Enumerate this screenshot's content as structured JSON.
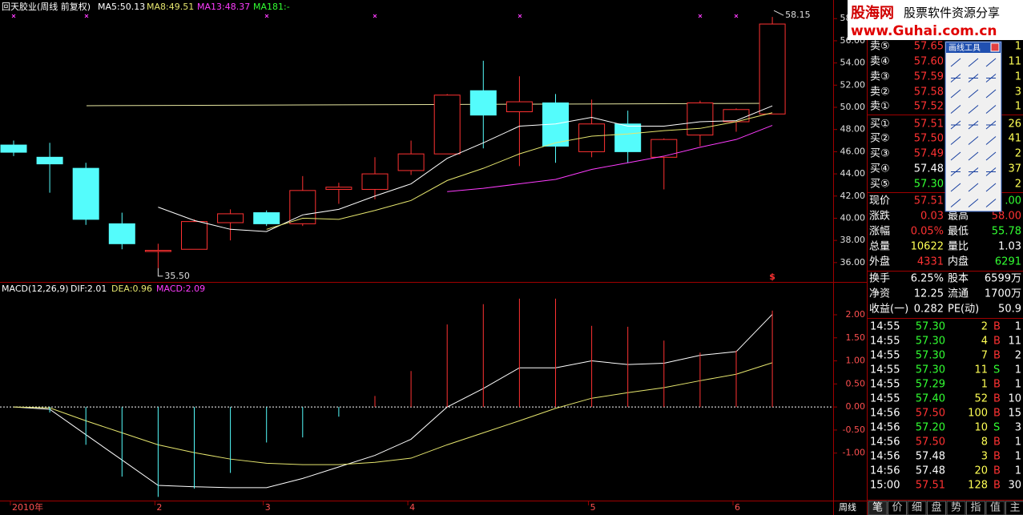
{
  "chart_data": [
    {
      "type": "candlestick",
      "title": "回天胶业(周线 前复权)",
      "open": [
        46.6,
        45.5,
        44.5,
        39.5,
        37.0,
        37.2,
        39.6,
        40.5,
        39.5,
        42.6,
        42.6,
        44.3,
        45.8,
        51.5,
        49.6,
        50.4,
        46.0,
        48.5,
        45.5,
        47.5,
        48.7,
        49.4
      ],
      "high": [
        47.0,
        46.8,
        45.0,
        40.5,
        37.7,
        39.9,
        40.8,
        40.7,
        43.8,
        43.2,
        45.5,
        47.0,
        51.2,
        54.2,
        52.8,
        51.2,
        50.7,
        49.7,
        47.2,
        50.6,
        49.9,
        58.15
      ],
      "low": [
        45.6,
        42.3,
        39.4,
        37.2,
        35.5,
        37.2,
        38.0,
        39.3,
        39.3,
        41.3,
        41.7,
        43.9,
        45.8,
        46.3,
        44.7,
        45.0,
        45.5,
        45.0,
        42.6,
        46.5,
        47.8,
        49.4
      ],
      "close": [
        45.95,
        44.9,
        39.9,
        37.7,
        37.1,
        39.7,
        40.4,
        39.5,
        42.5,
        42.8,
        44.0,
        45.8,
        51.1,
        49.3,
        50.5,
        46.5,
        48.5,
        46.0,
        47.1,
        50.4,
        49.8,
        57.51
      ],
      "up_color": "#ff3232",
      "down_color": "#54fcfc",
      "series": [
        {
          "name": "MA5:50.13",
          "color": "#ffffff",
          "values": [
            null,
            null,
            null,
            null,
            41.0,
            39.8,
            39.0,
            38.8,
            40.3,
            40.8,
            42.0,
            43.1,
            45.4,
            46.8,
            48.3,
            48.5,
            49.1,
            48.3,
            48.3,
            48.7,
            48.8,
            50.13
          ]
        },
        {
          "name": "MA8:49.51",
          "color": "#e6e66e",
          "values": [
            null,
            null,
            null,
            null,
            null,
            null,
            null,
            39.0,
            40.0,
            39.9,
            40.7,
            41.6,
            43.4,
            44.5,
            45.8,
            46.8,
            47.4,
            47.6,
            47.9,
            48.1,
            48.7,
            49.51
          ]
        },
        {
          "name": "MA13:48.37",
          "color": "#ff3cff",
          "values": [
            null,
            null,
            null,
            null,
            null,
            null,
            null,
            null,
            null,
            null,
            null,
            null,
            42.4,
            42.7,
            43.1,
            43.5,
            44.4,
            45.0,
            45.6,
            46.4,
            47.1,
            48.37
          ]
        },
        {
          "name": "MA181:-",
          "color": "#32ff32",
          "values": [
            null,
            null,
            null,
            null,
            null,
            null,
            null,
            null,
            null,
            null,
            null,
            null,
            null,
            null,
            null,
            null,
            null,
            null,
            null,
            null,
            null,
            null
          ]
        }
      ],
      "ylim": [
        34.4,
        59.1
      ],
      "yticks": [
        {
          "value": 36,
          "label": "36.00"
        },
        {
          "value": 38,
          "label": "38.00"
        },
        {
          "value": 40,
          "label": "40.00"
        },
        {
          "value": 42,
          "label": "42.00"
        },
        {
          "value": 44,
          "label": "44.00"
        },
        {
          "value": 46,
          "label": "46.00"
        },
        {
          "value": 48,
          "label": "48.00"
        },
        {
          "value": 50,
          "label": "50.00"
        },
        {
          "value": 52,
          "label": "52.00"
        },
        {
          "value": 54,
          "label": "54.00"
        },
        {
          "value": 56,
          "label": "56.00"
        },
        {
          "value": 58,
          "label": "58.00"
        }
      ],
      "annotations": [
        {
          "text": "58.15"
        },
        {
          "text": "35.50"
        },
        {
          "text": "$"
        }
      ]
    },
    {
      "type": "macd",
      "title": "MACD(12,26,9)",
      "categories": [
        "2010年",
        null,
        null,
        null,
        "2",
        null,
        null,
        "3",
        null,
        null,
        null,
        "4",
        null,
        null,
        null,
        null,
        "5",
        null,
        null,
        null,
        "6",
        null
      ],
      "up_color": "#ff3232",
      "down_color": "#54fcfc",
      "series": [
        {
          "name": "DIF:2.01",
          "color": "#ffffff",
          "values": [
            0,
            -0.05,
            -0.6,
            -1.15,
            -1.7,
            -1.73,
            -1.75,
            -1.75,
            -1.55,
            -1.3,
            -1.05,
            -0.7,
            0.0,
            0.4,
            0.85,
            0.85,
            1.0,
            0.92,
            0.95,
            1.12,
            1.2,
            2.01
          ]
        },
        {
          "name": "DEA:0.96",
          "color": "#e6e66e",
          "values": [
            0,
            -0.02,
            -0.3,
            -0.56,
            -0.82,
            -0.99,
            -1.13,
            -1.22,
            -1.25,
            -1.25,
            -1.2,
            -1.11,
            -0.82,
            -0.56,
            -0.3,
            -0.03,
            0.19,
            0.31,
            0.42,
            0.57,
            0.71,
            0.96
          ]
        },
        {
          "name": "MACD:2.09",
          "color": "#ff3cff",
          "type": "bar",
          "values": [
            0,
            -0.12,
            -0.82,
            -1.51,
            -1.95,
            -1.77,
            -1.43,
            -0.77,
            -0.66,
            -0.21,
            0.24,
            0.78,
            1.79,
            2.23,
            2.35,
            2.35,
            1.76,
            1.74,
            1.44,
            1.18,
            1.22,
            2.09
          ]
        }
      ],
      "ylim": [
        -2.03,
        2.66
      ],
      "yticks": [
        {
          "value": -1,
          "label": "-1.00"
        },
        {
          "value": -0.5,
          "label": "-0.50"
        },
        {
          "value": 0,
          "label": "0.00"
        },
        {
          "value": 0.5,
          "label": "0.50"
        },
        {
          "value": 1,
          "label": "1.00"
        },
        {
          "value": 1.5,
          "label": "1.50"
        },
        {
          "value": 2,
          "label": "2.00"
        }
      ]
    }
  ],
  "period": "周线",
  "logo": {
    "name": "股海网",
    "slogan": "股票软件资源分享",
    "url": "www.Guhai.com.cn"
  },
  "toolbar": {
    "title": "画线工具"
  },
  "order_book": [
    {
      "label": "卖⑤",
      "price": "57.65",
      "volume": "1",
      "color": "#ff3232"
    },
    {
      "label": "卖④",
      "price": "57.60",
      "volume": "11",
      "color": "#ff3232"
    },
    {
      "label": "卖③",
      "price": "57.59",
      "volume": "1",
      "color": "#ff3232"
    },
    {
      "label": "卖②",
      "price": "57.58",
      "volume": "3",
      "color": "#ff3232"
    },
    {
      "label": "卖①",
      "price": "57.52",
      "volume": "1",
      "color": "#ff3232"
    },
    {
      "label": "买①",
      "price": "57.51",
      "volume": "26",
      "color": "#ff3232"
    },
    {
      "label": "买②",
      "price": "57.50",
      "volume": "41",
      "color": "#ff3232"
    },
    {
      "label": "买③",
      "price": "57.49",
      "volume": "2",
      "color": "#ff3232"
    },
    {
      "label": "买④",
      "price": "57.48",
      "volume": "37",
      "color": "#ffffff"
    },
    {
      "label": "买⑤",
      "price": "57.30",
      "volume": "2",
      "color": "#32ff32"
    }
  ],
  "quote": [
    {
      "l1": "现价",
      "v1": "57.51",
      "c1": "#ff3232",
      "v2": ".00",
      "c2": "#32ff32"
    },
    {
      "l1": "涨跌",
      "v1": "0.03",
      "c1": "#ff3232",
      "l2": "最高",
      "v2": "58.00",
      "c2": "#ff3232"
    },
    {
      "l1": "涨幅",
      "v1": "0.05%",
      "c1": "#ff3232",
      "l2": "最低",
      "v2": "55.78",
      "c2": "#32ff32"
    },
    {
      "l1": "总量",
      "v1": "10622",
      "c1": "#ffff54",
      "l2": "量比",
      "v2": "1.03",
      "c2": "#ffffff"
    },
    {
      "l1": "外盘",
      "v1": "4331",
      "c1": "#ff3232",
      "l2": "内盘",
      "v2": "6291",
      "c2": "#32ff32"
    },
    {
      "l1": "换手",
      "v1": "6.25%",
      "c1": "#ffffff",
      "l2": "股本",
      "v2": "6599万",
      "c2": "#ffffff"
    },
    {
      "l1": "净资",
      "v1": "12.25",
      "c1": "#ffffff",
      "l2": "流通",
      "v2": "1700万",
      "c2": "#ffffff"
    },
    {
      "l1": "收益(一)",
      "v1": "0.282",
      "c1": "#ffffff",
      "l2": "PE(动)",
      "v2": "50.9",
      "c2": "#ffffff"
    }
  ],
  "trades": [
    {
      "time": "14:55",
      "price": "57.30",
      "volume": "2",
      "side": "B",
      "count": "1",
      "color": "#32ff32"
    },
    {
      "time": "14:55",
      "price": "57.30",
      "volume": "4",
      "side": "B",
      "count": "11",
      "color": "#32ff32"
    },
    {
      "time": "14:55",
      "price": "57.30",
      "volume": "7",
      "side": "B",
      "count": "2",
      "color": "#32ff32"
    },
    {
      "time": "14:55",
      "price": "57.30",
      "volume": "11",
      "side": "S",
      "count": "1",
      "color": "#32ff32"
    },
    {
      "time": "14:55",
      "price": "57.29",
      "volume": "1",
      "side": "B",
      "count": "1",
      "color": "#32ff32"
    },
    {
      "time": "14:55",
      "price": "57.40",
      "volume": "52",
      "side": "B",
      "count": "10",
      "color": "#32ff32"
    },
    {
      "time": "14:56",
      "price": "57.50",
      "volume": "100",
      "side": "B",
      "count": "15",
      "color": "#ff3232"
    },
    {
      "time": "14:56",
      "price": "57.20",
      "volume": "10",
      "side": "S",
      "count": "3",
      "color": "#32ff32"
    },
    {
      "time": "14:56",
      "price": "57.50",
      "volume": "8",
      "side": "B",
      "count": "1",
      "color": "#ff3232"
    },
    {
      "time": "14:56",
      "price": "57.48",
      "volume": "3",
      "side": "B",
      "count": "1",
      "color": "#ffffff"
    },
    {
      "time": "14:56",
      "price": "57.48",
      "volume": "20",
      "side": "B",
      "count": "1",
      "color": "#ffffff"
    },
    {
      "time": "15:00",
      "price": "57.51",
      "volume": "128",
      "side": "B",
      "count": "30",
      "color": "#ff3232"
    }
  ],
  "side_colors": {
    "B": "#ff3232",
    "S": "#32ff32"
  },
  "tabs": [
    "笔",
    "价",
    "细",
    "盘",
    "势",
    "指",
    "值",
    "主"
  ]
}
